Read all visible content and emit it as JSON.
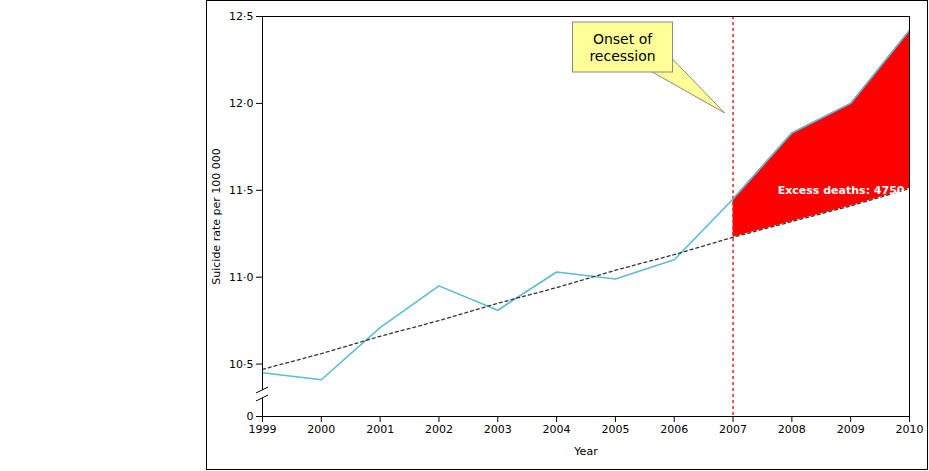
{
  "chart_data": {
    "type": "line",
    "x": [
      1999,
      2000,
      2001,
      2002,
      2003,
      2004,
      2005,
      2006,
      2007,
      2008,
      2009,
      2010
    ],
    "series": [
      {
        "color": "#5bbcd6",
        "line_style": "solid",
        "values": [
          10.45,
          10.41,
          10.71,
          10.95,
          10.81,
          11.03,
          10.99,
          11.1,
          11.45,
          11.83,
          12.0,
          12.42
        ]
      },
      {
        "color": "#333333",
        "line_style": "dotted",
        "values": [
          10.47,
          10.56,
          10.66,
          10.75,
          10.85,
          10.94,
          11.04,
          11.13,
          11.23,
          11.32,
          11.41,
          11.51
        ]
      }
    ],
    "xlim": [
      1999,
      2010
    ],
    "xticks": [
      1999,
      2000,
      2001,
      2002,
      2003,
      2004,
      2005,
      2006,
      2007,
      2008,
      2009,
      2010
    ],
    "ylim": [
      0,
      12.5
    ],
    "yticks": [
      0,
      {
        "value": 10.5,
        "label": "10·5"
      },
      {
        "value": 11,
        "label": "11·0"
      },
      {
        "value": 11.5,
        "label": "11·5"
      },
      {
        "value": 12,
        "label": "12·0"
      },
      {
        "value": 12.5,
        "label": "12·5"
      }
    ],
    "xlabel": "Year",
    "ylabel": "Suicide rate per 100 000",
    "excess_area": {
      "x_from": 2007,
      "color": "#ff0000",
      "label": "Excess deaths: 4750"
    },
    "annotations": [
      {
        "text": "Onset of recession",
        "x": 2007
      }
    ]
  }
}
